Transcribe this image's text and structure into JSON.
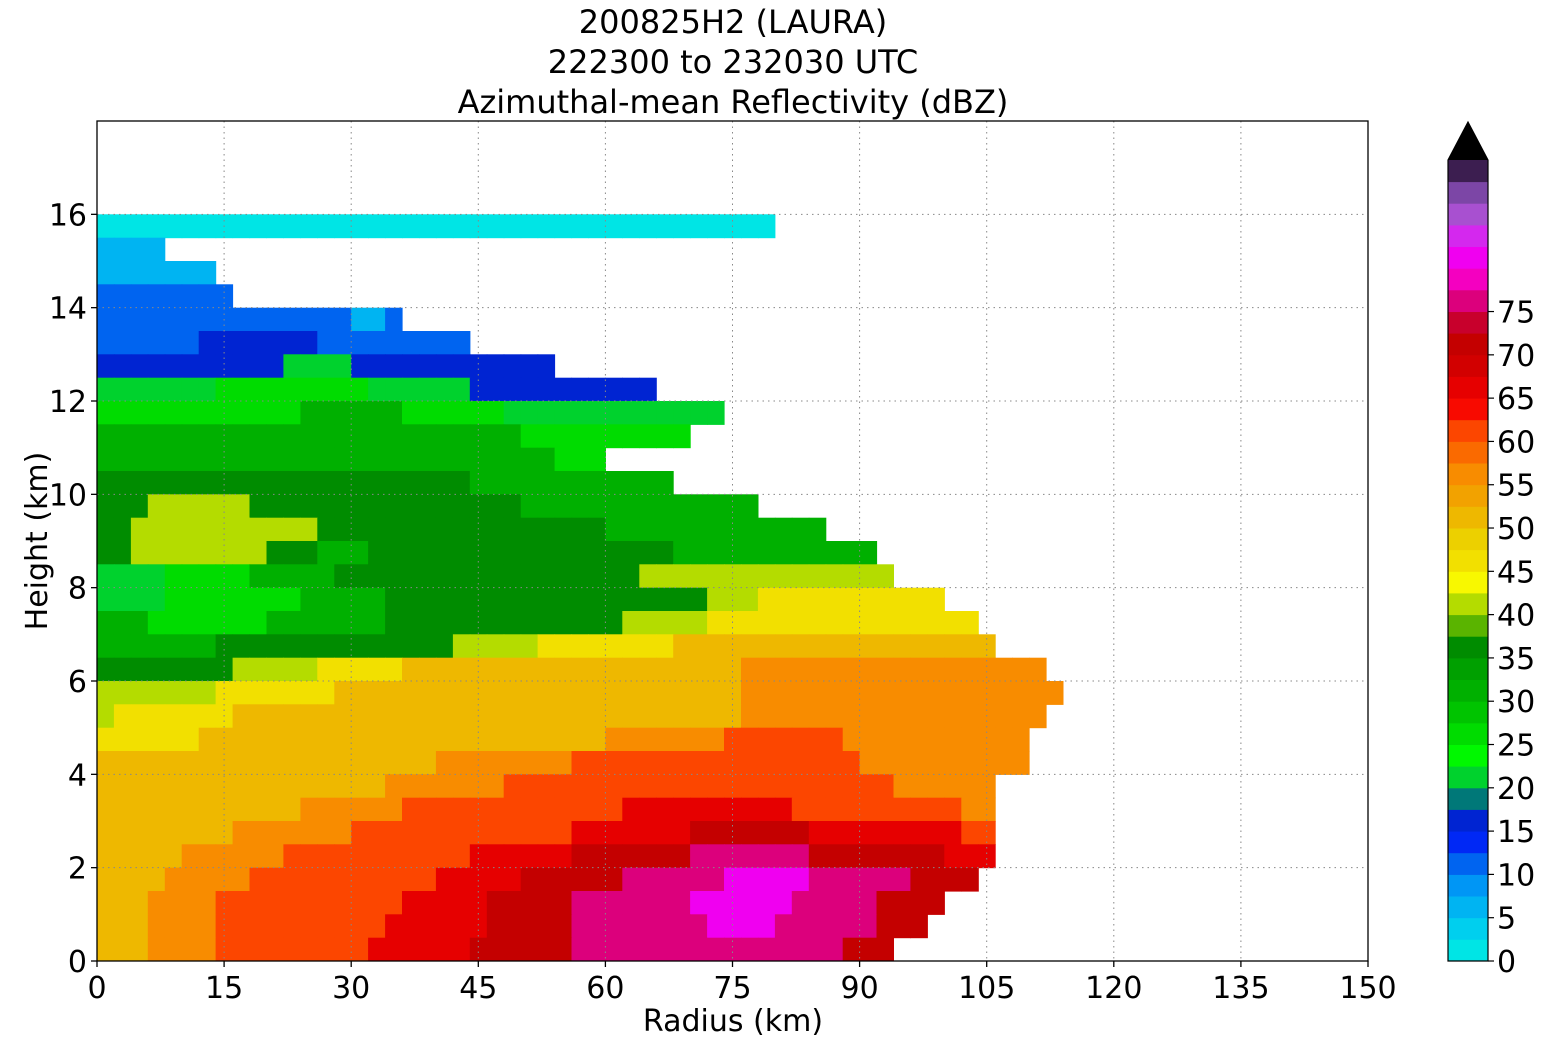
{
  "chart_data": {
    "type": "heatmap",
    "title_lines": [
      "200825H2 (LAURA)",
      "222300 to 232030 UTC",
      "Azimuthal-mean Reflectivity (dBZ)"
    ],
    "xlabel": "Radius (km)",
    "ylabel": "Height (km)",
    "xlim": [
      0,
      150
    ],
    "ylim": [
      0,
      18
    ],
    "xticks": [
      0,
      15,
      30,
      45,
      60,
      75,
      90,
      105,
      120,
      135,
      150
    ],
    "yticks": [
      0,
      2,
      4,
      6,
      8,
      10,
      12,
      14,
      16
    ],
    "grid": true,
    "colorbar": {
      "levels_start": 0,
      "level_step": 2.5,
      "ticks": [
        0,
        5,
        10,
        15,
        20,
        25,
        30,
        35,
        40,
        45,
        50,
        55,
        60,
        65,
        70,
        75
      ],
      "extend": "max",
      "colors": [
        "#00e5e5",
        "#00cfee",
        "#00b4f2",
        "#0096f5",
        "#0064f0",
        "#0028f5",
        "#0024d2",
        "#007878",
        "#00d22d",
        "#00f800",
        "#00dc00",
        "#00c400",
        "#00b000",
        "#00a000",
        "#008c00",
        "#5ab400",
        "#b4dc00",
        "#f8f800",
        "#f2e000",
        "#ecd000",
        "#eeb800",
        "#f2a200",
        "#f88c00",
        "#fa6a00",
        "#fc4600",
        "#f80a00",
        "#e60000",
        "#d20000",
        "#c40000",
        "#c8002c",
        "#dc007c",
        "#f400c0",
        "#f000f0",
        "#d428ee",
        "#a850d0",
        "#7c46a6",
        "#3c1e50"
      ],
      "extend_color": "#000000"
    },
    "height_levels_km": [
      16.0,
      15.5,
      15.0,
      14.5,
      14.0,
      13.5,
      13.0,
      12.5,
      12.0,
      11.5,
      11.0,
      10.5,
      10.0,
      9.5,
      9.0,
      8.5,
      8.0,
      7.5,
      7.0,
      6.5,
      6.0,
      5.5,
      5.0,
      4.5,
      4.0,
      3.5,
      3.0,
      2.5,
      2.0,
      1.5,
      1.0,
      0.5
    ],
    "radius_bin_km": 2,
    "reflectivity_dbz_rows": [
      "0000000000000000000000000000000000000000",
      "1111",
      "1111111",
      "22222222",
      "222222222222222112",
      "2222223333333222222222",
      "333333333334444333333333333",
      "444444455555555544444433333333333",
      "5555555555556666665555554444444444444",
      "66666666666666666666666665555555555",
      "666666666666666666666666666555",
      "7777777777777777777777666666666666",
      "777888888777777777777777766666666666666",
      "7788888888888777777777777777776666666666666",
      "7788888888777666777777777777777777666666666666",
      "44445555566666777777777777777777888888888888888",
      "44445555555566666777777777777777777788899999999999",
      "6665555555666666677777777777777888889999999999999999",
      "6666666777777777777778888899999999AAAAAAAAAAAAAAAAAAA",
      "777777778888899999AAAAAAAAAAAAAAAAAAAABBBBBBBBBBBBBBBBBB",
      "88888889999999AAAAAAAAAAAAAAAAAAAAAAAABBBBBBBBBBBBBBBBBBB",
      "89999999AAAAAAAAAAAAAAAAAAAAAAAAAAAAAABBBBBBBBBBBBBBBBBB",
      "999999AAAAAAAAAAAAAAAAAAAAAAAABBBBBBBCCCCCCCBBBBBBBBBBB",
      "AAAAAAAAAAAAAAAAAAAABBBBBBBBCCCCCCCCCCCCCCCCCBBBBBBBBBB",
      "AAAAAAAAAAAAAAAAABBBBBBBCCCCCCCCCCCCCCCCCCCCCCCBBBBBB",
      "AAAAAAAAAAAABBBBBBCCCCCCCCCCCCCDDDDDDDDDDCCCCCCCCCCBB",
      "AAAAAAAABBBBBBBCCCCCCCCCCCCCDDDDDDDEEEEEEEDDDDDDDDDCC",
      "AAAAABBBBBBCCCCCCCCCCCDDDDDDEEEEEEEFFFFFFFEEEEEEEEDDD",
      "AAAABBBBBCCCCCCCCCCCDDDDDEEEEEEFFFFFFGGGGGFFFFFFEEEE",
      "AAABBBBCCCCCCCCCCCDDDDDEEEEEFFFFFFFGGGGGGFFFFFEEEE",
      "AAABBBBCCCCCCCCCCDDDDDDEEEEEFFFFFFFFGGGGFFFFFFEEE",
      "AAABBBBCCCCCCCCCDDDDDDEEEEEEFFFFFFFFFFFFFFFFEEE"
    ]
  }
}
